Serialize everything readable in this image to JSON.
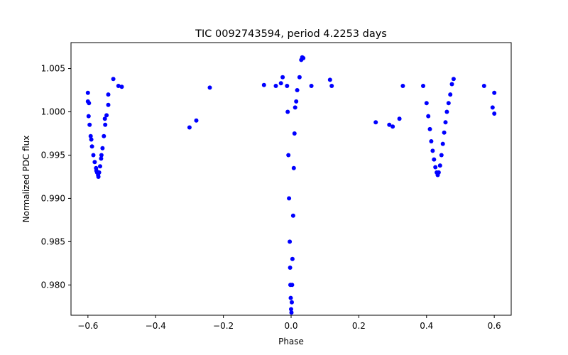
{
  "chart_data": {
    "type": "scatter",
    "title": "TIC 0092743594, period 4.2253 days",
    "xlabel": "Phase",
    "ylabel": "Normalized PDC flux",
    "xlim": [
      -0.65,
      0.65
    ],
    "ylim": [
      0.9765,
      1.008
    ],
    "x_ticks": [
      -0.6,
      -0.4,
      -0.2,
      0.0,
      0.2,
      0.4,
      0.6
    ],
    "x_tick_labels": [
      "−0.6",
      "−0.4",
      "−0.2",
      "0.0",
      "0.2",
      "0.4",
      "0.6"
    ],
    "y_ticks": [
      0.98,
      0.985,
      0.99,
      0.995,
      1.0,
      1.005
    ],
    "y_tick_labels": [
      "0.980",
      "0.985",
      "0.990",
      "0.995",
      "1.000",
      "1.005"
    ],
    "grid": false,
    "marker_color": "#0000ff",
    "series": [
      {
        "name": "PDC flux",
        "points": [
          [
            -0.6,
            1.0012
          ],
          [
            -0.598,
            0.9995
          ],
          [
            -0.595,
            0.9985
          ],
          [
            -0.592,
            0.9972
          ],
          [
            -0.588,
            0.996
          ],
          [
            -0.584,
            0.995
          ],
          [
            -0.58,
            0.9942
          ],
          [
            -0.576,
            0.9935
          ],
          [
            -0.573,
            0.993
          ],
          [
            -0.57,
            0.9927
          ],
          [
            -0.567,
            0.993
          ],
          [
            -0.564,
            0.9937
          ],
          [
            -0.561,
            0.9946
          ],
          [
            -0.557,
            0.9958
          ],
          [
            -0.553,
            0.9972
          ],
          [
            -0.549,
            0.9985
          ],
          [
            -0.545,
            0.9996
          ],
          [
            -0.54,
            1.0008
          ],
          [
            -0.6,
            1.0022
          ],
          [
            -0.597,
            1.001
          ],
          [
            -0.59,
            0.9968
          ],
          [
            -0.575,
            0.9932
          ],
          [
            -0.569,
            0.9925
          ],
          [
            -0.56,
            0.995
          ],
          [
            -0.55,
            0.9992
          ],
          [
            -0.54,
            1.002
          ],
          [
            -0.525,
            1.0038
          ],
          [
            -0.51,
            1.003
          ],
          [
            -0.5,
            1.0029
          ],
          [
            -0.3,
            0.9982
          ],
          [
            -0.28,
            0.999
          ],
          [
            -0.24,
            1.0028
          ],
          [
            -0.08,
            1.0031
          ],
          [
            -0.045,
            1.003
          ],
          [
            -0.03,
            1.0033
          ],
          [
            -0.025,
            1.004
          ],
          [
            -0.012,
            1.003
          ],
          [
            -0.01,
            1.0
          ],
          [
            -0.008,
            0.995
          ],
          [
            -0.006,
            0.99
          ],
          [
            -0.004,
            0.985
          ],
          [
            -0.003,
            0.982
          ],
          [
            -0.002,
            0.98
          ],
          [
            -0.001,
            0.9785
          ],
          [
            0.0,
            0.9772
          ],
          [
            0.001,
            0.9768
          ],
          [
            0.002,
            0.978
          ],
          [
            0.003,
            0.98
          ],
          [
            0.004,
            0.983
          ],
          [
            0.006,
            0.988
          ],
          [
            0.008,
            0.9935
          ],
          [
            0.01,
            0.9975
          ],
          [
            0.012,
            1.0005
          ],
          [
            0.015,
            1.0012
          ],
          [
            0.018,
            1.0025
          ],
          [
            0.025,
            1.004
          ],
          [
            0.03,
            1.006
          ],
          [
            0.033,
            1.0063
          ],
          [
            0.036,
            1.0062
          ],
          [
            0.06,
            1.003
          ],
          [
            0.115,
            1.0037
          ],
          [
            0.12,
            1.003
          ],
          [
            0.25,
            0.9988
          ],
          [
            0.29,
            0.9985
          ],
          [
            0.3,
            0.9983
          ],
          [
            0.32,
            0.9992
          ],
          [
            0.33,
            1.003
          ],
          [
            0.39,
            1.003
          ],
          [
            0.4,
            1.001
          ],
          [
            0.405,
            0.9995
          ],
          [
            0.41,
            0.998
          ],
          [
            0.414,
            0.9966
          ],
          [
            0.418,
            0.9955
          ],
          [
            0.422,
            0.9945
          ],
          [
            0.426,
            0.9936
          ],
          [
            0.43,
            0.993
          ],
          [
            0.433,
            0.9927
          ],
          [
            0.436,
            0.993
          ],
          [
            0.44,
            0.9938
          ],
          [
            0.444,
            0.995
          ],
          [
            0.448,
            0.9963
          ],
          [
            0.452,
            0.9976
          ],
          [
            0.456,
            0.9988
          ],
          [
            0.46,
            1.0
          ],
          [
            0.465,
            1.001
          ],
          [
            0.47,
            1.002
          ],
          [
            0.48,
            1.0038
          ],
          [
            0.475,
            1.0032
          ],
          [
            0.57,
            1.003
          ],
          [
            0.6,
            1.0022
          ],
          [
            0.6,
            0.9998
          ],
          [
            0.595,
            1.0005
          ]
        ]
      }
    ]
  }
}
